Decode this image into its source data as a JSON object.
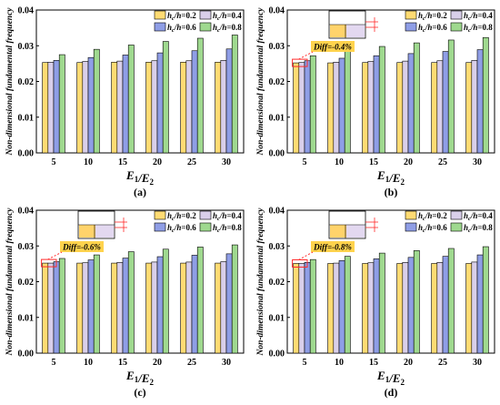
{
  "colors": {
    "series": [
      "#ffdb73",
      "#d9cfea",
      "#8f9ee6",
      "#9fd98f"
    ],
    "highlight_box": "#ff2a2a",
    "diff_label_bg": "#ffd34d",
    "inset_plate": "#ffd36b",
    "inset_core": "#e3d8f0"
  },
  "chart_data": [
    {
      "type": "bar",
      "panel_label": "(a)",
      "ylabel": "Non-dimensional fundamental frequency",
      "xlabel": "E₁/E₂",
      "categories": [
        "5",
        "10",
        "15",
        "20",
        "25",
        "30"
      ],
      "ylim": [
        0,
        0.04
      ],
      "yticks": [
        "0.00",
        "0.01",
        "0.02",
        "0.03",
        "0.04"
      ],
      "legend_position": "top-right",
      "series": [
        {
          "name": "hc/h=0.2",
          "values": [
            0.0253,
            0.0253,
            0.0254,
            0.0254,
            0.0254,
            0.0254
          ]
        },
        {
          "name": "hc/h=0.4",
          "values": [
            0.0254,
            0.0256,
            0.0257,
            0.0258,
            0.0258,
            0.0259
          ]
        },
        {
          "name": "hc/h=0.6",
          "values": [
            0.0259,
            0.0267,
            0.0274,
            0.028,
            0.0286,
            0.0291
          ]
        },
        {
          "name": "hc/h=0.8",
          "values": [
            0.0275,
            0.029,
            0.0302,
            0.0312,
            0.0321,
            0.033
          ]
        }
      ]
    },
    {
      "type": "bar",
      "panel_label": "(b)",
      "ylabel": "Non-dimensional fundamental frequency",
      "xlabel": "E₁/E₂",
      "categories": [
        "5",
        "10",
        "15",
        "20",
        "25",
        "30"
      ],
      "ylim": [
        0,
        0.04
      ],
      "yticks": [
        "0.00",
        "0.01",
        "0.02",
        "0.03",
        "0.04"
      ],
      "legend_position": "top-right",
      "annotation": "Diff=-0.4%",
      "series": [
        {
          "name": "hc/h=0.2",
          "values": [
            0.0252,
            0.0252,
            0.0253,
            0.0253,
            0.0253,
            0.0253
          ]
        },
        {
          "name": "hc/h=0.4",
          "values": [
            0.0253,
            0.0254,
            0.0256,
            0.0257,
            0.0258,
            0.0259
          ]
        },
        {
          "name": "hc/h=0.6",
          "values": [
            0.0258,
            0.0265,
            0.0272,
            0.0278,
            0.0284,
            0.0289
          ]
        },
        {
          "name": "hc/h=0.8",
          "values": [
            0.0272,
            0.0286,
            0.0298,
            0.0308,
            0.0316,
            0.0323
          ]
        }
      ]
    },
    {
      "type": "bar",
      "panel_label": "(c)",
      "ylabel": "Non-dimensional fundamental frequency",
      "xlabel": "E₁/E₂",
      "categories": [
        "5",
        "10",
        "15",
        "20",
        "25",
        "30"
      ],
      "ylim": [
        0,
        0.04
      ],
      "yticks": [
        "0.00",
        "0.01",
        "0.02",
        "0.03",
        "0.04"
      ],
      "legend_position": "top-right",
      "annotation": "Diff=-0.6%",
      "series": [
        {
          "name": "hc/h=0.2",
          "values": [
            0.0252,
            0.0252,
            0.0252,
            0.0252,
            0.0252,
            0.0252
          ]
        },
        {
          "name": "hc/h=0.4",
          "values": [
            0.0252,
            0.0253,
            0.0254,
            0.0255,
            0.0255,
            0.0256
          ]
        },
        {
          "name": "hc/h=0.6",
          "values": [
            0.0256,
            0.0261,
            0.0266,
            0.027,
            0.0274,
            0.0278
          ]
        },
        {
          "name": "hc/h=0.8",
          "values": [
            0.0265,
            0.0275,
            0.0284,
            0.0291,
            0.0297,
            0.0303
          ]
        }
      ]
    },
    {
      "type": "bar",
      "panel_label": "(d)",
      "ylabel": "Non-dimensional fundamental frequency",
      "xlabel": "E₁/E₂",
      "categories": [
        "5",
        "10",
        "15",
        "20",
        "25",
        "30"
      ],
      "ylim": [
        0,
        0.04
      ],
      "yticks": [
        "0.00",
        "0.01",
        "0.02",
        "0.03",
        "0.04"
      ],
      "legend_position": "top-right",
      "annotation": "Diff=-0.8%",
      "series": [
        {
          "name": "hc/h=0.2",
          "values": [
            0.0251,
            0.0251,
            0.0251,
            0.0251,
            0.0251,
            0.0251
          ]
        },
        {
          "name": "hc/h=0.4",
          "values": [
            0.0251,
            0.0252,
            0.0253,
            0.0254,
            0.0254,
            0.0255
          ]
        },
        {
          "name": "hc/h=0.6",
          "values": [
            0.0254,
            0.0259,
            0.0264,
            0.0268,
            0.0271,
            0.0275
          ]
        },
        {
          "name": "hc/h=0.8",
          "values": [
            0.0262,
            0.0271,
            0.028,
            0.0287,
            0.0293,
            0.0298
          ]
        }
      ]
    }
  ]
}
